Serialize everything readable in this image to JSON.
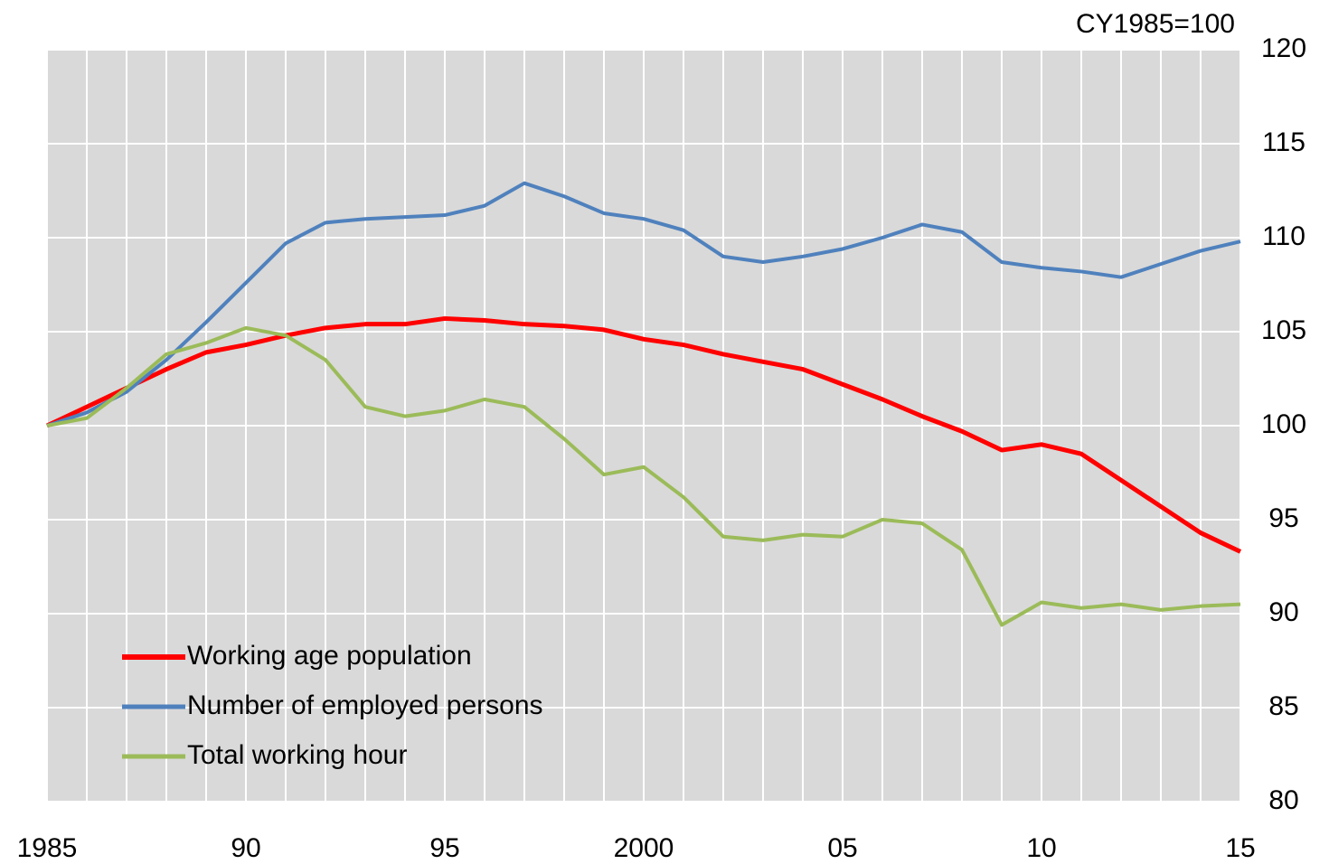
{
  "chart_data": {
    "type": "line",
    "unit_label": "CY1985=100",
    "x": [
      1985,
      1986,
      1987,
      1988,
      1989,
      1990,
      1991,
      1992,
      1993,
      1994,
      1995,
      1996,
      1997,
      1998,
      1999,
      2000,
      2001,
      2002,
      2003,
      2004,
      2005,
      2006,
      2007,
      2008,
      2009,
      2010,
      2011,
      2012,
      2013,
      2014,
      2015
    ],
    "series": [
      {
        "name": "Working age population",
        "color": "#ff0000",
        "values": [
          100,
          101.0,
          102.0,
          103.0,
          103.9,
          104.3,
          104.8,
          105.2,
          105.4,
          105.4,
          105.7,
          105.6,
          105.4,
          105.3,
          105.1,
          104.6,
          104.3,
          103.8,
          103.4,
          103.0,
          102.2,
          101.4,
          100.5,
          99.7,
          98.7,
          99.0,
          98.5,
          97.1,
          95.7,
          94.3,
          93.3
        ]
      },
      {
        "name": "Number of employed persons",
        "color": "#4f81bd",
        "values": [
          100,
          100.7,
          101.8,
          103.5,
          105.5,
          107.6,
          109.7,
          110.8,
          111.0,
          111.1,
          111.2,
          111.7,
          112.9,
          112.2,
          111.3,
          111.0,
          110.4,
          109.0,
          108.7,
          109.0,
          109.4,
          110.0,
          110.7,
          110.3,
          108.7,
          108.4,
          108.2,
          107.9,
          108.6,
          109.3,
          109.8
        ]
      },
      {
        "name": "Total working hour",
        "color": "#9bbb59",
        "values": [
          100,
          100.4,
          102.0,
          103.8,
          104.4,
          105.2,
          104.8,
          103.5,
          101.0,
          100.5,
          100.8,
          101.4,
          101.0,
          99.3,
          97.4,
          97.8,
          96.2,
          94.1,
          93.9,
          94.2,
          94.1,
          95.0,
          94.8,
          93.4,
          89.4,
          90.6,
          90.3,
          90.5,
          90.2,
          90.4,
          90.5
        ]
      }
    ],
    "xlim": [
      1985,
      2015
    ],
    "xticks": [
      1985,
      {
        "value": 1990,
        "label": "90"
      },
      {
        "value": 1995,
        "label": "95"
      },
      2000,
      {
        "value": 2005,
        "label": "05"
      },
      {
        "value": 2010,
        "label": "10"
      },
      {
        "value": 2015,
        "label": "15"
      }
    ],
    "ylim": [
      80,
      120
    ],
    "yticks": [
      80,
      85,
      90,
      95,
      100,
      105,
      110,
      115,
      120
    ],
    "grid": true,
    "legend": "lower left"
  }
}
